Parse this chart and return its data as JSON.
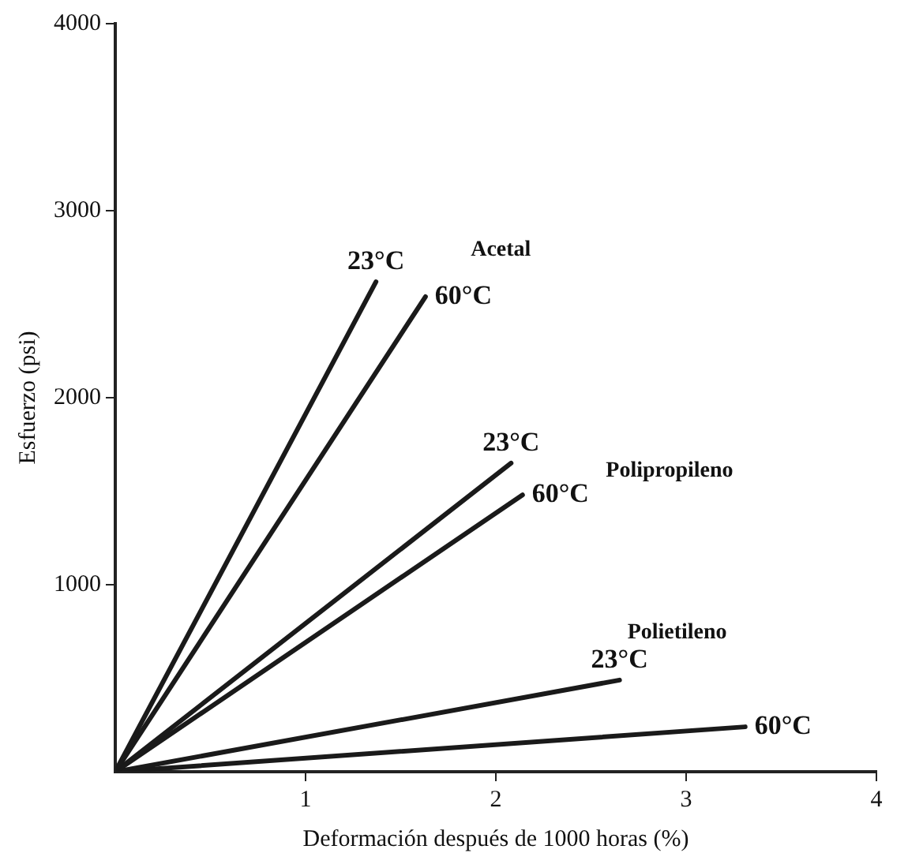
{
  "chart_data": {
    "type": "line",
    "xlabel": "Deformación después de 1000 horas (%)",
    "ylabel": "Esfuerzo (psi)",
    "xlim": [
      0,
      4
    ],
    "xticks": [
      1,
      2,
      3,
      4
    ],
    "ylim": [
      0,
      4000
    ],
    "yticks": [
      1000,
      2000,
      3000,
      4000
    ],
    "grid": false,
    "legend": false,
    "marker": "none",
    "line_style": "solid",
    "series": [
      {
        "name": "23°C",
        "color": "#1a1a1a",
        "x": [
          0,
          1.37
        ],
        "values": [
          0,
          2620
        ]
      },
      {
        "name": "60°C",
        "color": "#1a1a1a",
        "x": [
          0,
          1.63
        ],
        "values": [
          0,
          2540
        ]
      },
      {
        "name": "23°C",
        "color": "#1a1a1a",
        "x": [
          0,
          2.08
        ],
        "values": [
          0,
          1650
        ]
      },
      {
        "name": "60°C",
        "color": "#1a1a1a",
        "x": [
          0,
          2.14
        ],
        "values": [
          0,
          1480
        ]
      },
      {
        "name": "23°C",
        "color": "#1a1a1a",
        "x": [
          0,
          2.65
        ],
        "values": [
          0,
          490
        ]
      },
      {
        "name": "60°C",
        "color": "#1a1a1a",
        "x": [
          0,
          3.31
        ],
        "values": [
          0,
          240
        ]
      }
    ],
    "annotations": [
      "Acetal",
      "Polipropileno",
      "Polietileno"
    ]
  }
}
